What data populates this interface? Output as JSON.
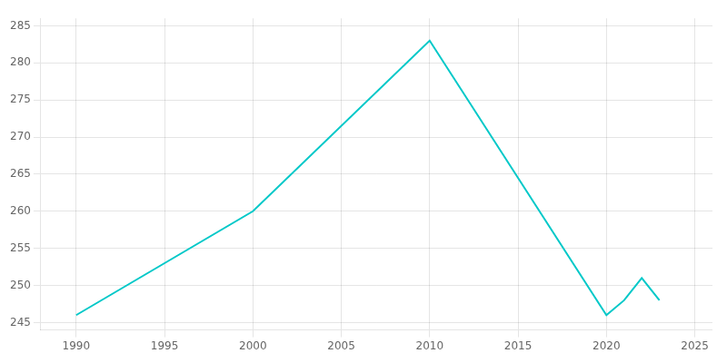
{
  "chart_data": {
    "type": "line",
    "x": [
      1990,
      2000,
      2010,
      2020,
      2021,
      2022,
      2023
    ],
    "values": [
      246,
      260,
      283,
      246,
      248,
      251,
      248
    ],
    "color": "#00c8c8",
    "xlim": [
      1988,
      2026
    ],
    "ylim": [
      244,
      286
    ],
    "xticks": [
      1990,
      1995,
      2000,
      2005,
      2010,
      2015,
      2020,
      2025
    ],
    "yticks": [
      245,
      250,
      255,
      260,
      265,
      270,
      275,
      280,
      285
    ],
    "grid": true
  }
}
